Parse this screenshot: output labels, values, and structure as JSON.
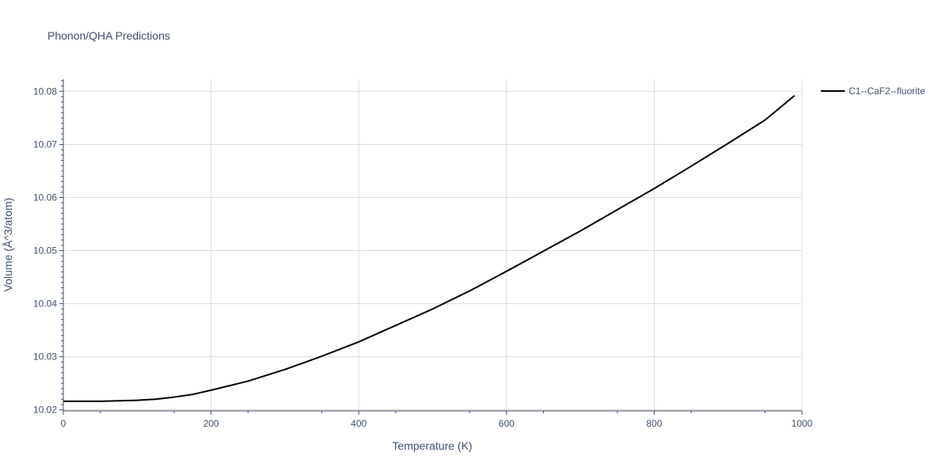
{
  "chart_data": {
    "type": "line",
    "title": "Phonon/QHA Predictions",
    "xlabel": "Temperature (K)",
    "ylabel": "Volume (Å^3/atom)",
    "xlim": [
      0,
      1000
    ],
    "ylim": [
      10.0198,
      10.0823
    ],
    "x_ticks": [
      0,
      200,
      400,
      600,
      800,
      1000
    ],
    "x_tick_labels": [
      "0",
      "200",
      "400",
      "600",
      "800",
      "1000"
    ],
    "y_ticks": [
      10.02,
      10.03,
      10.04,
      10.05,
      10.06,
      10.07,
      10.08
    ],
    "y_tick_labels": [
      "10.02",
      "10.03",
      "10.04",
      "10.05",
      "10.06",
      "10.07",
      "10.08"
    ],
    "grid": true,
    "legend_position": "top-right, outside plot",
    "series": [
      {
        "name": "C1--CaF2--fluorite",
        "color": "#000000",
        "x": [
          0,
          25,
          50,
          75,
          100,
          125,
          150,
          175,
          200,
          250,
          300,
          350,
          400,
          450,
          500,
          550,
          600,
          650,
          700,
          750,
          800,
          850,
          900,
          950,
          990
        ],
        "y": [
          10.0216,
          10.0216,
          10.0216,
          10.0217,
          10.0218,
          10.022,
          10.0224,
          10.0229,
          10.0237,
          10.0254,
          10.0276,
          10.0301,
          10.0328,
          10.0359,
          10.039,
          10.0424,
          10.0461,
          10.0499,
          10.0537,
          10.0577,
          10.0617,
          10.0659,
          10.0702,
          10.0746,
          10.0792
        ]
      }
    ]
  }
}
